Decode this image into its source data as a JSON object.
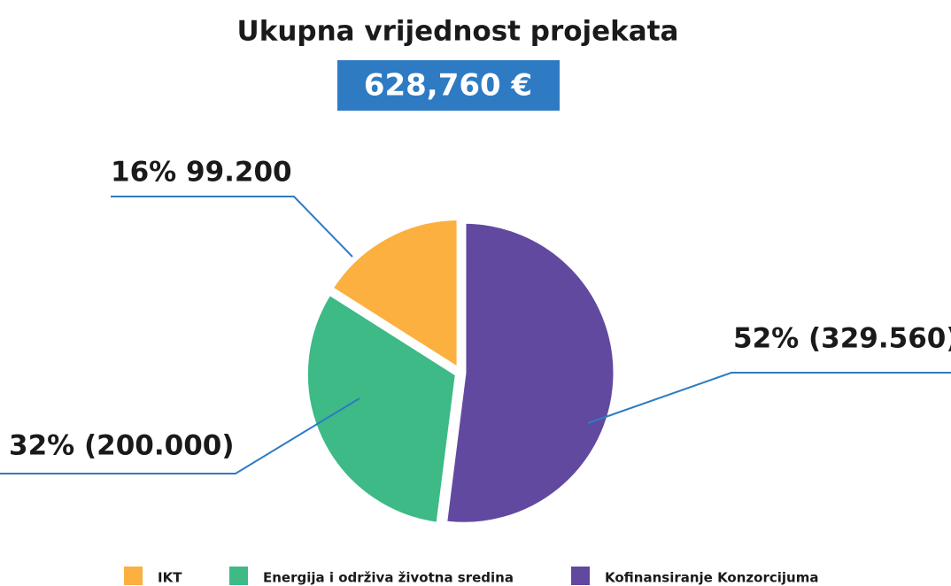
{
  "chart_data": {
    "type": "pie",
    "title": "Ukupna vrijednost projekata",
    "subtitle": "628,760 €",
    "categories": [
      "IKT",
      "Energija i održiva životna sredina",
      "Kofinansiranje Konzorcijuma"
    ],
    "values": [
      16,
      32,
      52
    ],
    "value_labels": [
      "16% 99.200",
      "32% (200.000)",
      "52% (329.560)"
    ],
    "colors": [
      "#fbb040",
      "#3dba86",
      "#6249a0"
    ]
  }
}
